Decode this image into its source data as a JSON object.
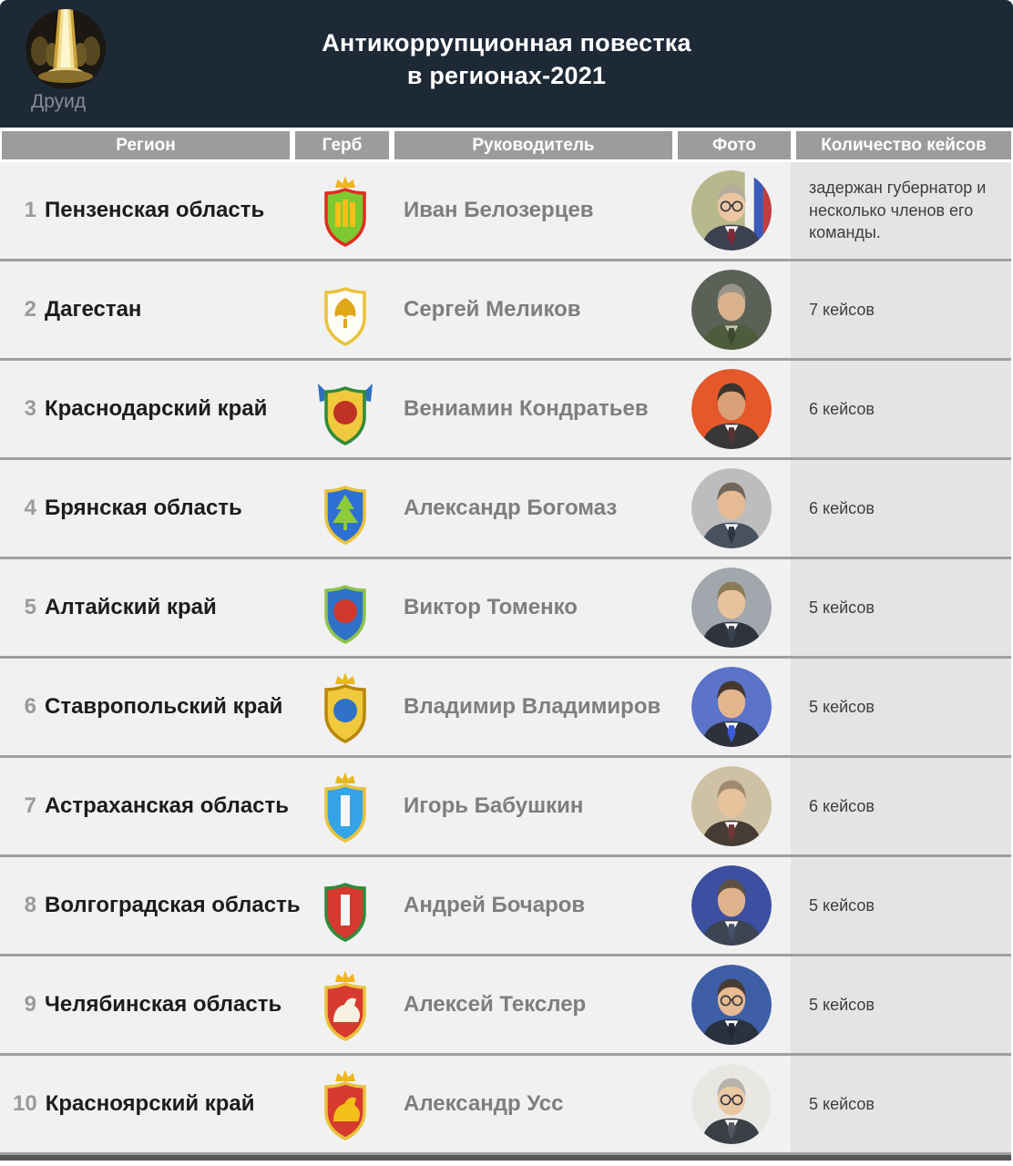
{
  "header": {
    "brand_name": "Друид",
    "title_line1": "Антикоррупционная повестка",
    "title_line2": "в регионах-2021"
  },
  "colors": {
    "header_bg": "#1e2936",
    "col_header_bg": "#9c9c9c",
    "row_bg": "#f1f1f1",
    "cases_bg": "#e4e4e4",
    "separator": "#9f9f9f",
    "region_text": "#1c1c1c",
    "leader_text": "#7e7e7e",
    "rank_text": "#9b9b9b"
  },
  "chart_data": {
    "type": "table",
    "title": "Антикоррупционная повестка в регионах-2021",
    "columns": [
      "Регион",
      "Герб",
      "Руководитель",
      "Фото",
      "Количество кейсов"
    ],
    "rows": [
      {
        "num": "1",
        "region": "Пензенская область",
        "leader": "Иван Белозерцев",
        "cases": "задержан губернатор и несколько членов его команды.",
        "crest": {
          "crown": true,
          "crownColor": "#f0b41e",
          "shield": "#7ec832",
          "border": "#e02d1f",
          "emblem": "#f2c018",
          "emblemShape": "bars",
          "flags": null,
          "name": "penza-oblast-crest"
        },
        "photo": {
          "bg": "#b7b98c",
          "suit": "#3b4150",
          "tie": "#7c2b38",
          "hair": "#b5ad9c",
          "skin": "#ecc6a2",
          "shirt": "#ffffff",
          "flag": true,
          "glasses": true
        }
      },
      {
        "num": "2",
        "region": "Дагестан",
        "leader": "Сергей Меликов",
        "cases": "7 кейсов",
        "crest": {
          "crown": false,
          "crownColor": "#e8b820",
          "shield": "#fdfdf5",
          "border": "#e8c23a",
          "emblem": "#e0a818",
          "emblemShape": "bird",
          "flags": null,
          "name": "dagestan-crest"
        },
        "photo": {
          "bg": "#5c6157",
          "suit": "#4e5c3c",
          "tie": "#3e4a30",
          "hair": "#9a948a",
          "skin": "#d9b18c",
          "shirt": "#c9c4b4",
          "flag": false,
          "glasses": false
        }
      },
      {
        "num": "3",
        "region": "Краснодарский край",
        "leader": "Вениамин Кондратьев",
        "cases": "6 кейсов",
        "crest": {
          "crown": false,
          "crownColor": "#e8b820",
          "shield": "#f0c93c",
          "border": "#2e8b3a",
          "emblem": "#c03224",
          "emblemShape": "circle",
          "flags": "#2f6fc0",
          "name": "krasnodar-krai-crest"
        },
        "photo": {
          "bg": "#e4582a",
          "suit": "#383838",
          "tie": "#553333",
          "hair": "#3c332c",
          "skin": "#d9a078",
          "shirt": "#ffffff",
          "flag": false,
          "glasses": false
        }
      },
      {
        "num": "4",
        "region": "Брянская область",
        "leader": "Александр Богомаз",
        "cases": "6 кейсов",
        "crest": {
          "crown": false,
          "crownColor": "#e8b820",
          "shield": "#2e6fd6",
          "border": "#e8c23a",
          "emblem": "#8ecb3a",
          "emblemShape": "tree",
          "flags": null,
          "name": "bryansk-oblast-crest"
        },
        "photo": {
          "bg": "#bdbdbd",
          "suit": "#47515f",
          "tie": "#2e3744",
          "hair": "#70665a",
          "skin": "#e6ba92",
          "shirt": "#ffffff",
          "flag": false,
          "glasses": false
        }
      },
      {
        "num": "5",
        "region": "Алтайский край",
        "leader": "Виктор Томенко",
        "cases": "5 кейсов",
        "crest": {
          "crown": false,
          "crownColor": "#e8b820",
          "shield": "#2f72c8",
          "border": "#8fc34a",
          "emblem": "#d0382e",
          "emblemShape": "circle",
          "flags": null,
          "name": "altai-krai-crest"
        },
        "photo": {
          "bg": "#a2a7ad",
          "suit": "#2e333d",
          "tie": "#39414e",
          "hair": "#8a7a58",
          "skin": "#e8c29c",
          "shirt": "#ffffff",
          "flag": false,
          "glasses": false
        }
      },
      {
        "num": "6",
        "region": "Ставропольский край",
        "leader": "Владимир Владимиров",
        "cases": "5 кейсов",
        "crest": {
          "crown": true,
          "crownColor": "#e8b820",
          "shield": "#f0c93c",
          "border": "#b8860b",
          "emblem": "#2f72c8",
          "emblemShape": "circle",
          "flags": null,
          "name": "stavropol-krai-crest"
        },
        "photo": {
          "bg": "#5b73c8",
          "suit": "#2c313b",
          "tie": "#3b5bd8",
          "hair": "#46382f",
          "skin": "#e4b58d",
          "shirt": "#ffffff",
          "flag": false,
          "glasses": false
        }
      },
      {
        "num": "7",
        "region": "Астраханская область",
        "leader": "Игорь Бабушкин",
        "cases": "6 кейсов",
        "crest": {
          "crown": true,
          "crownColor": "#e8b820",
          "shield": "#35a3e8",
          "border": "#e8c23a",
          "emblem": "#f5f5f5",
          "emblemShape": "bar",
          "flags": null,
          "name": "astrakhan-oblast-crest"
        },
        "photo": {
          "bg": "#cfc2a4",
          "suit": "#463c36",
          "tie": "#6a3636",
          "hair": "#a08b72",
          "skin": "#e8c29c",
          "shirt": "#ffffff",
          "flag": false,
          "glasses": false
        }
      },
      {
        "num": "8",
        "region": "Волгоградская область",
        "leader": "Андрей Бочаров",
        "cases": "5 кейсов",
        "crest": {
          "crown": false,
          "crownColor": "#e8b820",
          "shield": "#d63a2e",
          "border": "#2e8b3a",
          "emblem": "#f5f5f5",
          "emblemShape": "bar",
          "flags": null,
          "name": "volgograd-oblast-crest"
        },
        "photo": {
          "bg": "#3d4fa0",
          "suit": "#3d4553",
          "tie": "#47516b",
          "hair": "#5c5044",
          "skin": "#e0b28c",
          "shirt": "#ffffff",
          "flag": false,
          "glasses": false
        }
      },
      {
        "num": "9",
        "region": "Челябинская область",
        "leader": "Алексей Текслер",
        "cases": "5 кейсов",
        "crest": {
          "crown": true,
          "crownColor": "#f0b41e",
          "shield": "#d63a2e",
          "border": "#e8c23a",
          "emblem": "#f5f0e0",
          "emblemShape": "blob",
          "flags": null,
          "name": "chelyabinsk-oblast-crest"
        },
        "photo": {
          "bg": "#3e5ea6",
          "suit": "#2b323f",
          "tie": "#232a36",
          "hair": "#473c33",
          "skin": "#e6ba92",
          "shirt": "#ffffff",
          "flag": false,
          "glasses": true
        }
      },
      {
        "num": "10",
        "region": "Красноярский край",
        "leader": "Александр Усс",
        "cases": "5 кейсов",
        "crest": {
          "crown": true,
          "crownColor": "#f0b41e",
          "shield": "#d63a2e",
          "border": "#e8c23a",
          "emblem": "#f2c018",
          "emblemShape": "blob",
          "flags": null,
          "name": "krasnoyarsk-krai-crest"
        },
        "photo": {
          "bg": "#e9e7e3",
          "suit": "#3b4047",
          "tie": "#54585e",
          "hair": "#b8b3aa",
          "skin": "#eac8a4",
          "shirt": "#ffffff",
          "flag": false,
          "glasses": true
        }
      }
    ]
  }
}
